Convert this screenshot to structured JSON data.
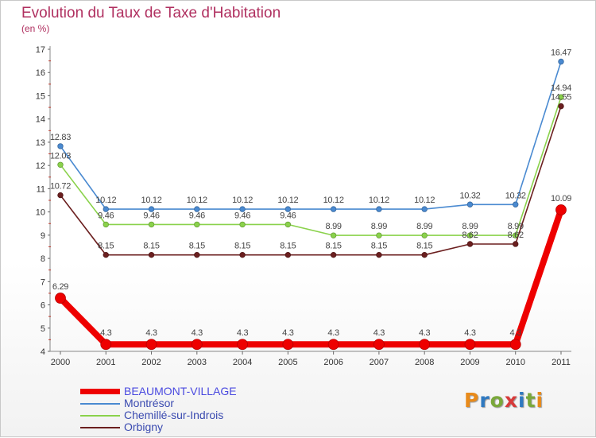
{
  "header": {
    "title": "Evolution du Taux de Taxe d'Habitation",
    "unit": "(en %)"
  },
  "brand": {
    "letters": [
      "P",
      "r",
      "o",
      "x",
      "i",
      "t",
      "i"
    ]
  },
  "colors": {
    "brand_letters": [
      "#e88a1a",
      "#2f79c0",
      "#7aa83a",
      "#d73a3a",
      "#2f79c0",
      "#7aa83a",
      "#e88a1a"
    ]
  },
  "chart_data": {
    "type": "line",
    "title": "Evolution du Taux de Taxe d'Habitation",
    "ylabel": "(en %)",
    "xlabel": "",
    "x": [
      "2000",
      "2001",
      "2002",
      "2003",
      "2004",
      "2005",
      "2006",
      "2007",
      "2008",
      "2009",
      "2010",
      "2011"
    ],
    "ylim": [
      4,
      17
    ],
    "yticks": [
      "4",
      "5",
      "6",
      "7",
      "8",
      "9",
      "10",
      "11",
      "12",
      "13",
      "14",
      "15",
      "16",
      "17"
    ],
    "grid": false,
    "legend": "bottom-left",
    "series": [
      {
        "name": "BEAUMONT-VILLAGE",
        "color": "#ee0000",
        "emphasis": true,
        "values": [
          6.29,
          4.3,
          4.3,
          4.3,
          4.3,
          4.3,
          4.3,
          4.3,
          4.3,
          4.3,
          4.3,
          10.09
        ],
        "labels": [
          "6.29",
          "4.3",
          "4.3",
          "4.3",
          "4.3",
          "4.3",
          "4.3",
          "4.3",
          "4.3",
          "4.3",
          "4.3",
          "10.09"
        ]
      },
      {
        "name": "Montrésor",
        "color": "#4a8ad1",
        "emphasis": false,
        "values": [
          12.83,
          10.12,
          10.12,
          10.12,
          10.12,
          10.12,
          10.12,
          10.12,
          10.12,
          10.32,
          10.32,
          16.47
        ],
        "labels": [
          "12.83",
          "10.12",
          "10.12",
          "10.12",
          "10.12",
          "10.12",
          "10.12",
          "10.12",
          "10.12",
          "10.32",
          "10.32",
          "16.47"
        ]
      },
      {
        "name": "Chemillé-sur-Indrois",
        "color": "#8ad24b",
        "emphasis": false,
        "values": [
          12.03,
          9.46,
          9.46,
          9.46,
          9.46,
          9.46,
          8.99,
          8.99,
          8.99,
          8.99,
          8.99,
          14.94
        ],
        "labels": [
          "12.03",
          "9.46",
          "9.46",
          "9.46",
          "9.46",
          "9.46",
          "8.99",
          "8.99",
          "8.99",
          "8.99",
          "8.99",
          "14.94"
        ]
      },
      {
        "name": "Orbigny",
        "color": "#6b1f1f",
        "emphasis": false,
        "values": [
          10.72,
          8.15,
          8.15,
          8.15,
          8.15,
          8.15,
          8.15,
          8.15,
          8.15,
          8.62,
          8.62,
          14.55
        ],
        "labels": [
          "10.72",
          "8.15",
          "8.15",
          "8.15",
          "8.15",
          "8.15",
          "8.15",
          "8.15",
          "8.15",
          "8.62",
          "8.62",
          "14.55"
        ]
      }
    ],
    "label_order": [
      "Chemillé-sur-Indrois",
      "Orbigny",
      "Montrésor",
      "BEAUMONT-VILLAGE"
    ]
  }
}
